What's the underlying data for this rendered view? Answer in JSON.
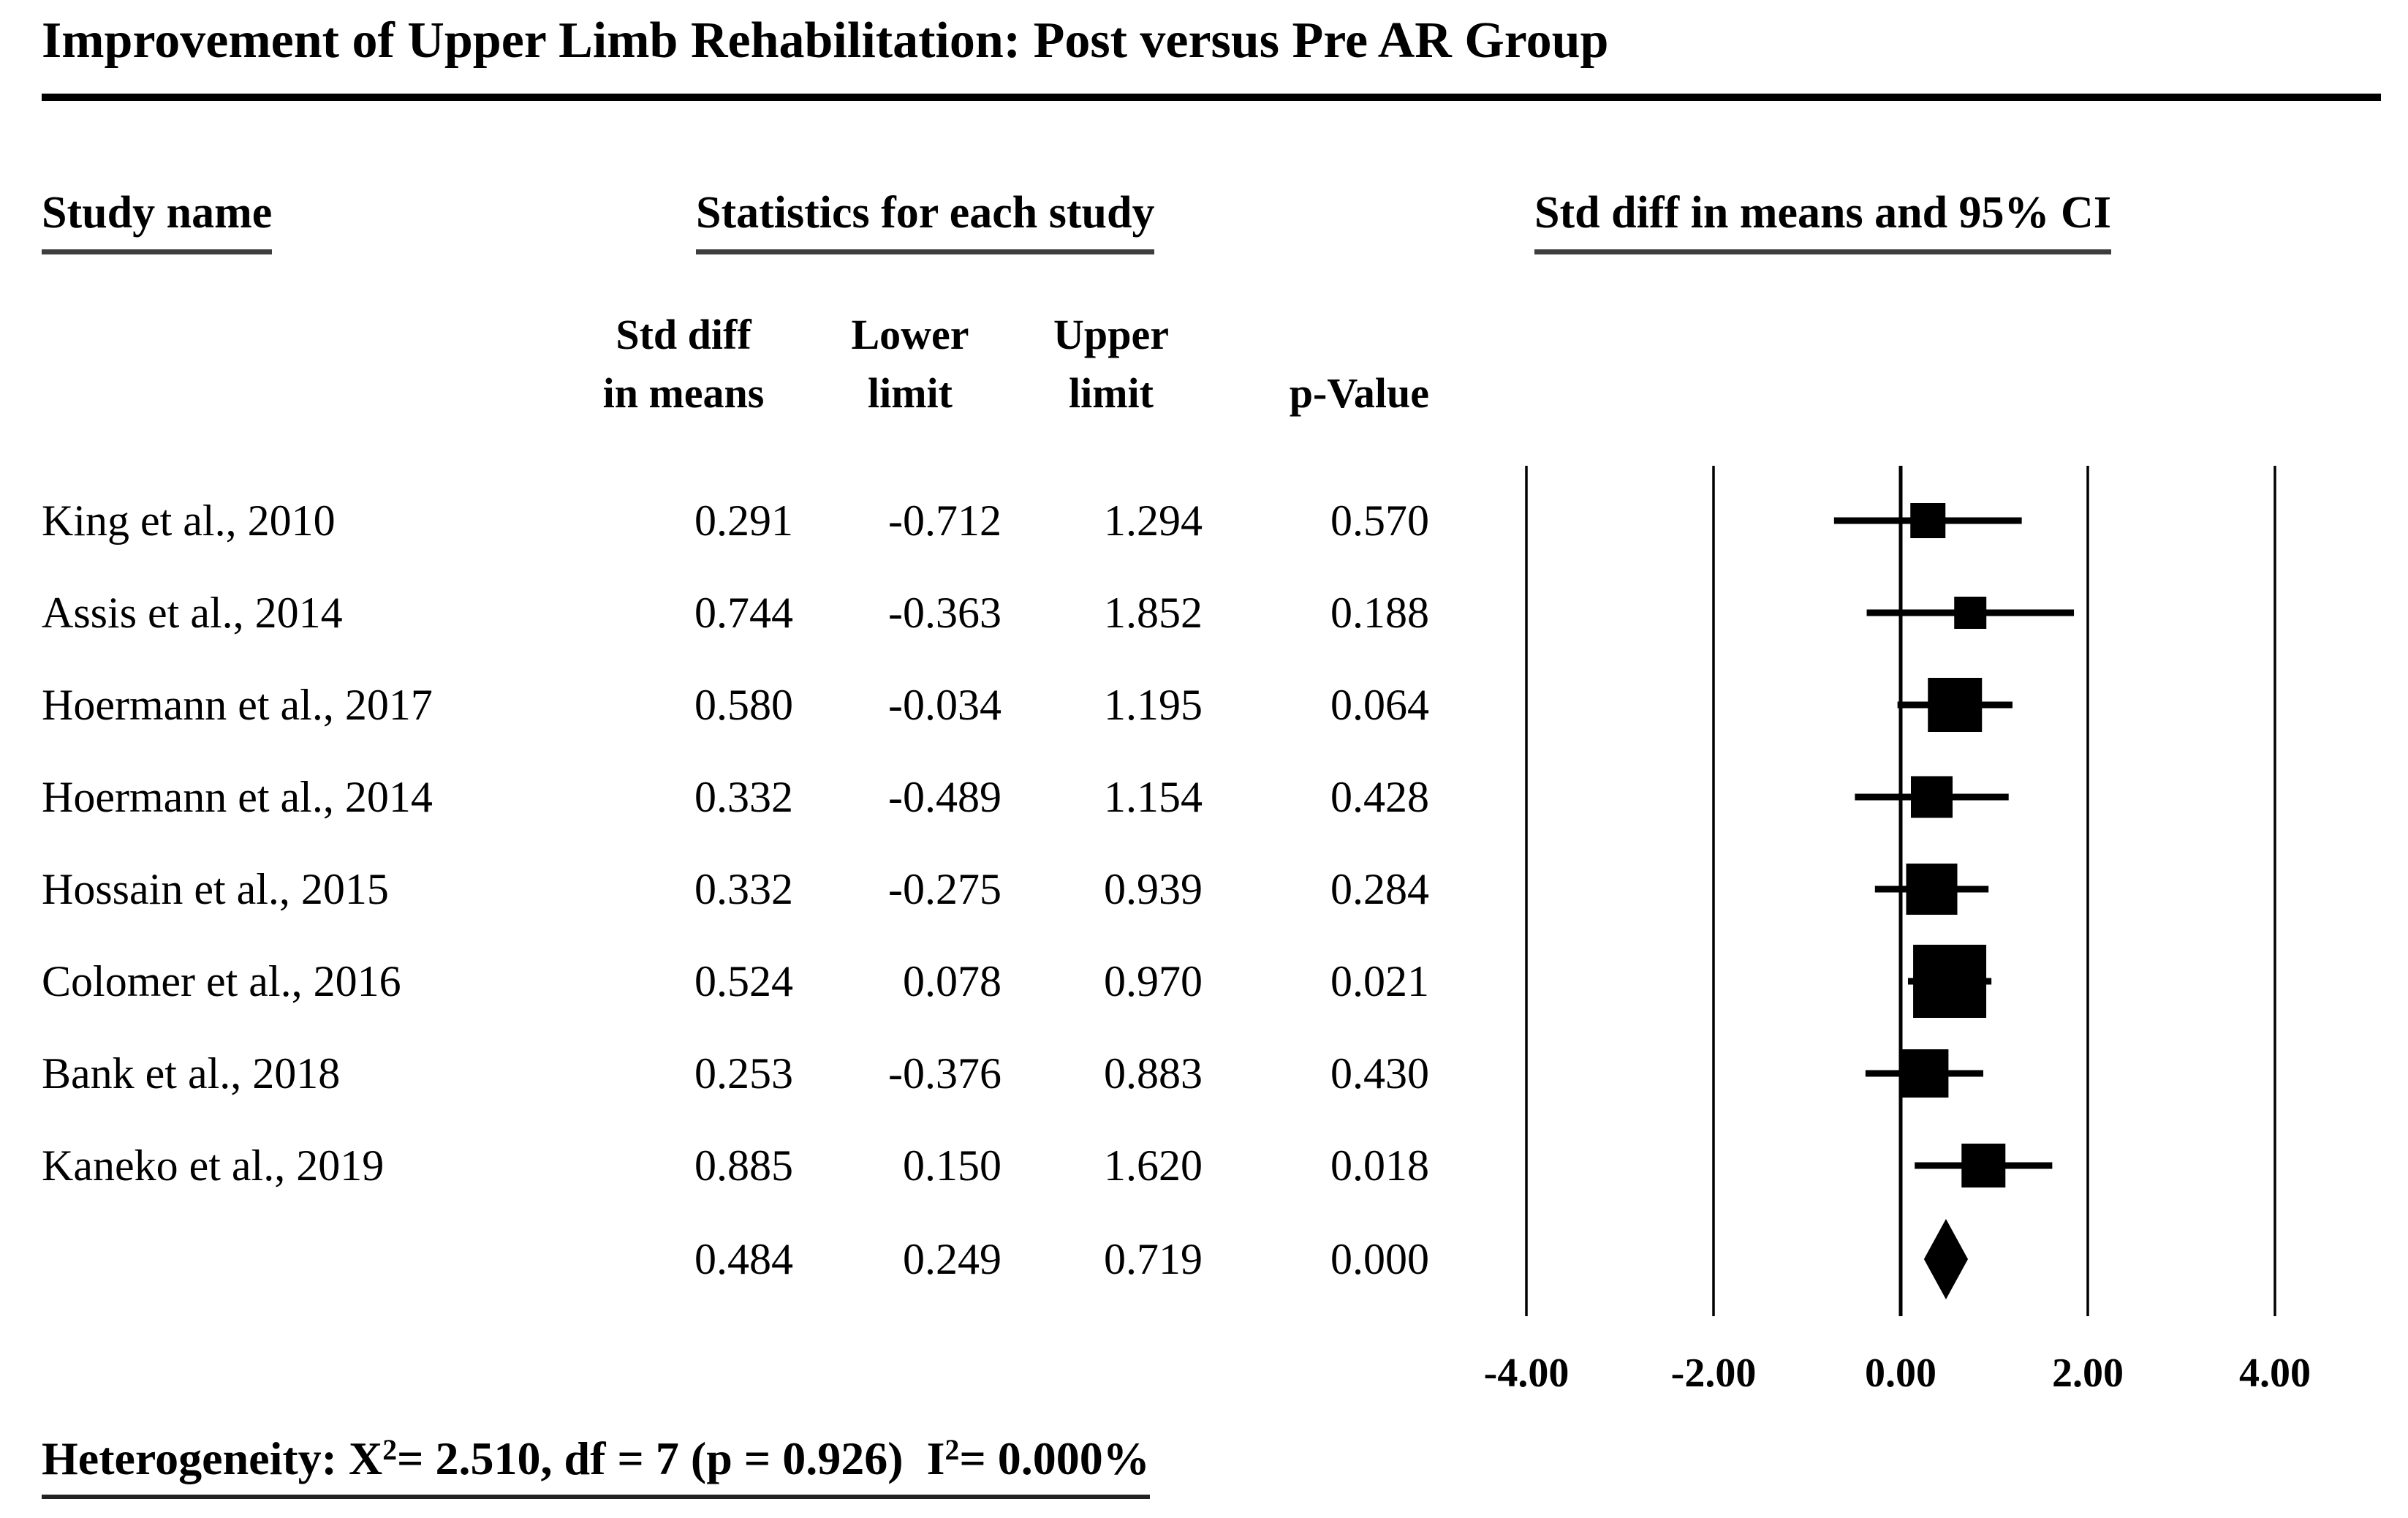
{
  "title": "Improvement of Upper Limb Rehabilitation: Post versus Pre AR Group",
  "columns": {
    "study_group": "Study name",
    "stats_group": "Statistics for each study",
    "plot_group": "Std diff in means and 95% CI",
    "sub": {
      "std_diff_line1": "Std diff",
      "std_diff_line2": "in means",
      "lower_line1": "Lower",
      "lower_line2": "limit",
      "upper_line1": "Upper",
      "upper_line2": "limit",
      "p_value": "p-Value"
    }
  },
  "chart_data": {
    "type": "forest",
    "effect_measure": "Std diff in means",
    "x_ticks": [
      -4,
      -2,
      0,
      2,
      4
    ],
    "x_tick_labels": [
      "-4.00",
      "-2.00",
      "0.00",
      "2.00",
      "4.00"
    ],
    "x_range": [
      -4.7,
      4.7
    ],
    "grid": "vertical-reference-lines",
    "studies": [
      {
        "name": "King et al., 2010",
        "std_diff": 0.291,
        "lower": -0.712,
        "upper": 1.294,
        "p_value": 0.57,
        "marker_size": 48
      },
      {
        "name": "Assis et al., 2014",
        "std_diff": 0.744,
        "lower": -0.363,
        "upper": 1.852,
        "p_value": 0.188,
        "marker_size": 44
      },
      {
        "name": "Hoermann et al., 2017",
        "std_diff": 0.58,
        "lower": -0.034,
        "upper": 1.195,
        "p_value": 0.064,
        "marker_size": 74
      },
      {
        "name": "Hoermann et al., 2014",
        "std_diff": 0.332,
        "lower": -0.489,
        "upper": 1.154,
        "p_value": 0.428,
        "marker_size": 57
      },
      {
        "name": "Hossain et al., 2015",
        "std_diff": 0.332,
        "lower": -0.275,
        "upper": 0.939,
        "p_value": 0.284,
        "marker_size": 70
      },
      {
        "name": "Colomer et al., 2016",
        "std_diff": 0.524,
        "lower": 0.078,
        "upper": 0.97,
        "p_value": 0.021,
        "marker_size": 100
      },
      {
        "name": "Bank et al., 2018",
        "std_diff": 0.253,
        "lower": -0.376,
        "upper": 0.883,
        "p_value": 0.43,
        "marker_size": 66
      },
      {
        "name": "Kaneko et al., 2019",
        "std_diff": 0.885,
        "lower": 0.15,
        "upper": 1.62,
        "p_value": 0.018,
        "marker_size": 60
      }
    ],
    "summary": {
      "std_diff": 0.484,
      "lower": 0.249,
      "upper": 0.719,
      "p_value": 0.0
    }
  },
  "footer": {
    "prefix": "Heterogeneity: X",
    "sup1": "2",
    "mid": "= 2.510, df = 7 (p = 0.926)  I",
    "sup2": "2",
    "suffix": "= 0.000%"
  }
}
